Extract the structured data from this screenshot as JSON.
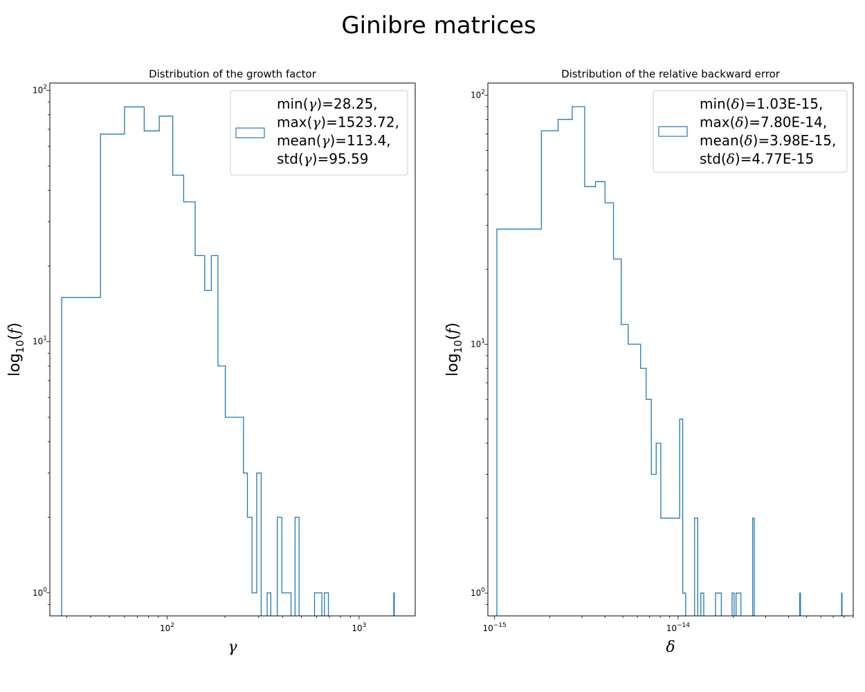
{
  "figure": {
    "suptitle": "Ginibre matrices"
  },
  "chart_data": [
    {
      "type": "histogram",
      "title": "Distribution of the growth factor",
      "xlabel": "γ",
      "ylabel": "log10(f)",
      "xscale": "log",
      "yscale": "log",
      "xlim": [
        24.5,
        1960
      ],
      "ylim": [
        0.81,
        107
      ],
      "xticks": [
        {
          "value": 100,
          "base": "10",
          "exp": "2"
        },
        {
          "value": 1000,
          "base": "10",
          "exp": "3"
        }
      ],
      "yticks": [
        {
          "value": 1,
          "base": "10",
          "exp": "0"
        },
        {
          "value": 10,
          "base": "10",
          "exp": "1"
        },
        {
          "value": 100,
          "base": "10",
          "exp": "2"
        }
      ],
      "color": "#1f77b4",
      "legend": {
        "position": "top-right",
        "lines": [
          "min(γ)=28.25,",
          "max(γ)=1523.72,",
          "mean(γ)=113.4,",
          "std(γ)=95.59"
        ]
      },
      "bins": [
        {
          "x0": 28.25,
          "x1": 45,
          "count": 15
        },
        {
          "x0": 45,
          "x1": 60,
          "count": 67
        },
        {
          "x0": 60,
          "x1": 76,
          "count": 86
        },
        {
          "x0": 76,
          "x1": 91,
          "count": 69
        },
        {
          "x0": 91,
          "x1": 107,
          "count": 79
        },
        {
          "x0": 107,
          "x1": 122,
          "count": 46
        },
        {
          "x0": 122,
          "x1": 140,
          "count": 36
        },
        {
          "x0": 140,
          "x1": 157,
          "count": 22
        },
        {
          "x0": 157,
          "x1": 170,
          "count": 16
        },
        {
          "x0": 170,
          "x1": 184,
          "count": 22
        },
        {
          "x0": 184,
          "x1": 201,
          "count": 8
        },
        {
          "x0": 201,
          "x1": 250,
          "count": 5
        },
        {
          "x0": 250,
          "x1": 262,
          "count": 3
        },
        {
          "x0": 262,
          "x1": 277,
          "count": 2
        },
        {
          "x0": 277,
          "x1": 293,
          "count": 1
        },
        {
          "x0": 293,
          "x1": 309,
          "count": 3
        },
        {
          "x0": 309,
          "x1": 332,
          "count": 0
        },
        {
          "x0": 332,
          "x1": 347,
          "count": 1
        },
        {
          "x0": 347,
          "x1": 375,
          "count": 0
        },
        {
          "x0": 375,
          "x1": 396,
          "count": 2
        },
        {
          "x0": 396,
          "x1": 442,
          "count": 1
        },
        {
          "x0": 442,
          "x1": 464,
          "count": 0
        },
        {
          "x0": 464,
          "x1": 487,
          "count": 2
        },
        {
          "x0": 487,
          "x1": 586,
          "count": 0
        },
        {
          "x0": 586,
          "x1": 640,
          "count": 1
        },
        {
          "x0": 640,
          "x1": 660,
          "count": 0
        },
        {
          "x0": 660,
          "x1": 692,
          "count": 1
        },
        {
          "x0": 692,
          "x1": 1515,
          "count": 0
        },
        {
          "x0": 1515,
          "x1": 1525,
          "count": 1
        }
      ]
    },
    {
      "type": "histogram",
      "title": "Distribution of the relative backward error",
      "xlabel": "δ",
      "ylabel": "log10(f)",
      "xscale": "log",
      "yscale": "log",
      "xlim": [
        9.2e-16,
        9e-14
      ],
      "ylim": [
        0.81,
        112
      ],
      "xticks": [
        {
          "value": 1e-15,
          "base": "10",
          "exp": "−15"
        },
        {
          "value": 1e-14,
          "base": "10",
          "exp": "−14"
        }
      ],
      "yticks": [
        {
          "value": 1,
          "base": "10",
          "exp": "0"
        },
        {
          "value": 10,
          "base": "10",
          "exp": "1"
        },
        {
          "value": 100,
          "base": "10",
          "exp": "2"
        }
      ],
      "color": "#1f77b4",
      "legend": {
        "position": "top-right",
        "lines": [
          "min(δ)=1.03E-15,",
          "max(δ)=7.80E-14,",
          "mean(δ)=3.98E-15,",
          "std(δ)=4.77E-15"
        ]
      },
      "bins": [
        {
          "x0": 1.03e-15,
          "x1": 1.8e-15,
          "count": 29
        },
        {
          "x0": 1.8e-15,
          "x1": 2.22e-15,
          "count": 72
        },
        {
          "x0": 2.22e-15,
          "x1": 2.65e-15,
          "count": 80
        },
        {
          "x0": 2.65e-15,
          "x1": 3.1e-15,
          "count": 90
        },
        {
          "x0": 3.1e-15,
          "x1": 3.55e-15,
          "count": 43
        },
        {
          "x0": 3.55e-15,
          "x1": 4e-15,
          "count": 45
        },
        {
          "x0": 4e-15,
          "x1": 4.45e-15,
          "count": 37
        },
        {
          "x0": 4.45e-15,
          "x1": 4.9e-15,
          "count": 22
        },
        {
          "x0": 4.9e-15,
          "x1": 5.35e-15,
          "count": 12
        },
        {
          "x0": 5.35e-15,
          "x1": 6.25e-15,
          "count": 10
        },
        {
          "x0": 6.25e-15,
          "x1": 6.7e-15,
          "count": 8
        },
        {
          "x0": 6.7e-15,
          "x1": 7.15e-15,
          "count": 6
        },
        {
          "x0": 7.15e-15,
          "x1": 7.6e-15,
          "count": 3
        },
        {
          "x0": 7.6e-15,
          "x1": 8.05e-15,
          "count": 4
        },
        {
          "x0": 8.05e-15,
          "x1": 8.5e-15,
          "count": 2
        },
        {
          "x0": 8.5e-15,
          "x1": 1.02e-14,
          "count": 2
        },
        {
          "x0": 1.02e-14,
          "x1": 1.06e-14,
          "count": 5
        },
        {
          "x0": 1.06e-14,
          "x1": 1.1e-14,
          "count": 1
        },
        {
          "x0": 1.1e-14,
          "x1": 1.23e-14,
          "count": 0
        },
        {
          "x0": 1.23e-14,
          "x1": 1.28e-14,
          "count": 2
        },
        {
          "x0": 1.28e-14,
          "x1": 1.33e-14,
          "count": 0
        },
        {
          "x0": 1.33e-14,
          "x1": 1.38e-14,
          "count": 1
        },
        {
          "x0": 1.38e-14,
          "x1": 1.6e-14,
          "count": 0
        },
        {
          "x0": 1.6e-14,
          "x1": 1.72e-14,
          "count": 1
        },
        {
          "x0": 1.72e-14,
          "x1": 1.97e-14,
          "count": 0
        },
        {
          "x0": 1.97e-14,
          "x1": 2.02e-14,
          "count": 1
        },
        {
          "x0": 2.02e-14,
          "x1": 2.07e-14,
          "count": 0
        },
        {
          "x0": 2.07e-14,
          "x1": 2.2e-14,
          "count": 1
        },
        {
          "x0": 2.2e-14,
          "x1": 2.55e-14,
          "count": 0
        },
        {
          "x0": 2.55e-14,
          "x1": 2.6e-14,
          "count": 2
        },
        {
          "x0": 2.6e-14,
          "x1": 4.6e-14,
          "count": 0
        },
        {
          "x0": 4.6e-14,
          "x1": 4.64e-14,
          "count": 1
        },
        {
          "x0": 4.64e-14,
          "x1": 7.78e-14,
          "count": 0
        },
        {
          "x0": 7.78e-14,
          "x1": 7.82e-14,
          "count": 1
        }
      ]
    }
  ]
}
